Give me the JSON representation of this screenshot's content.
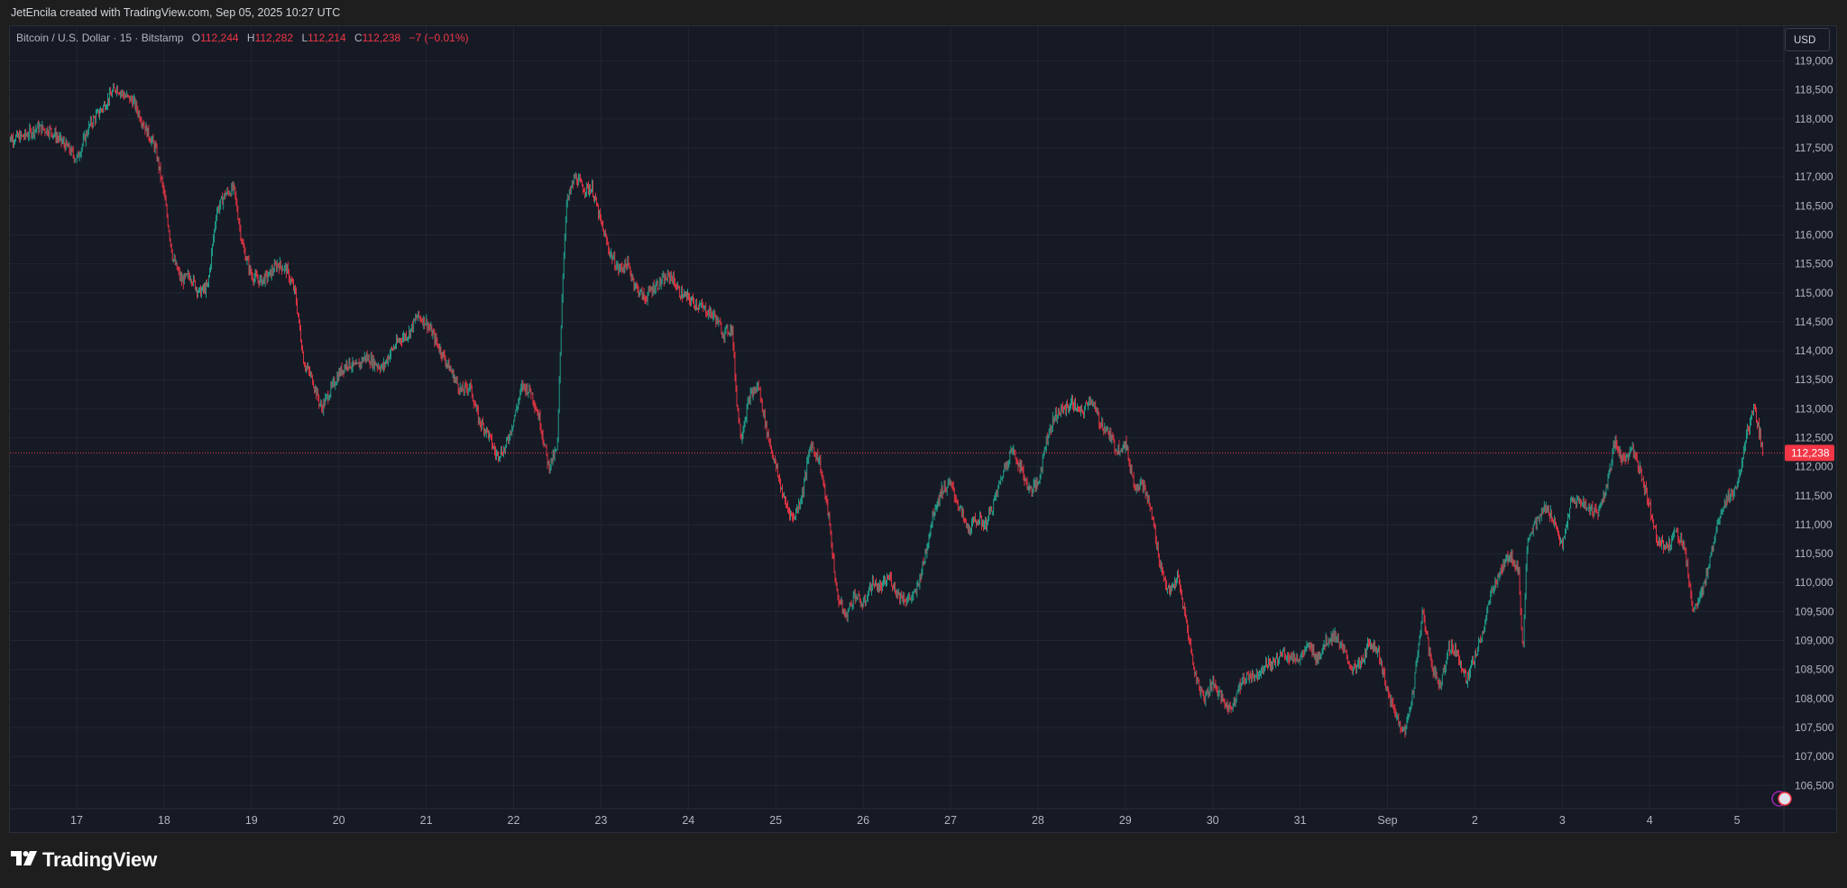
{
  "header": {
    "attribution": "JetEncila created with TradingView.com, Sep 05, 2025 10:27 UTC"
  },
  "legend": {
    "symbol": "Bitcoin / U.S. Dollar · 15 · Bitstamp",
    "open_label": "O",
    "open": "112,244",
    "high_label": "H",
    "high": "112,282",
    "low_label": "L",
    "low": "112,214",
    "close_label": "C",
    "close": "112,238",
    "change": "−7 (−0.01%)"
  },
  "currency_button": "USD",
  "branding": {
    "name": "TradingView"
  },
  "colors": {
    "background": "#161a25",
    "up": "#22ab94",
    "down": "#f23645",
    "grid": "#222633",
    "axis_text": "#b2b5be",
    "price_badge": "#f23645"
  },
  "chart_data": {
    "type": "candlestick",
    "title": "Bitcoin / U.S. Dollar · 15 · Bitstamp",
    "interval": "15",
    "ylim": [
      106100,
      119600
    ],
    "y_ticks": [
      "106,500",
      "107,000",
      "107,500",
      "108,000",
      "108,500",
      "109,000",
      "109,500",
      "110,000",
      "110,500",
      "111,000",
      "111,500",
      "112,000",
      "112,500",
      "113,000",
      "113,500",
      "114,000",
      "114,500",
      "115,000",
      "115,500",
      "116,000",
      "116,500",
      "117,000",
      "117,500",
      "118,000",
      "118,500",
      "119,000"
    ],
    "x_ticks": [
      "17",
      "18",
      "19",
      "20",
      "21",
      "22",
      "23",
      "24",
      "25",
      "26",
      "27",
      "28",
      "29",
      "30",
      "31",
      "Sep",
      "2",
      "3",
      "4",
      "5"
    ],
    "x_start": 16.2,
    "x_end": 36.5,
    "last_price": "112,238",
    "last_value": 112238,
    "grid": true,
    "price_path": [
      [
        16.2,
        117650
      ],
      [
        16.4,
        117700
      ],
      [
        16.55,
        117850
      ],
      [
        16.7,
        117800
      ],
      [
        16.9,
        117500
      ],
      [
        17.0,
        117300
      ],
      [
        17.15,
        117900
      ],
      [
        17.3,
        118200
      ],
      [
        17.45,
        118550
      ],
      [
        17.55,
        118400
      ],
      [
        17.65,
        118300
      ],
      [
        17.8,
        117800
      ],
      [
        17.9,
        117500
      ],
      [
        18.0,
        116700
      ],
      [
        18.1,
        115600
      ],
      [
        18.2,
        115200
      ],
      [
        18.3,
        115300
      ],
      [
        18.4,
        115000
      ],
      [
        18.5,
        115100
      ],
      [
        18.6,
        116400
      ],
      [
        18.7,
        116700
      ],
      [
        18.8,
        116800
      ],
      [
        18.9,
        115800
      ],
      [
        19.0,
        115300
      ],
      [
        19.1,
        115200
      ],
      [
        19.2,
        115300
      ],
      [
        19.3,
        115500
      ],
      [
        19.4,
        115400
      ],
      [
        19.5,
        115000
      ],
      [
        19.55,
        114400
      ],
      [
        19.6,
        113800
      ],
      [
        19.7,
        113500
      ],
      [
        19.8,
        113000
      ],
      [
        19.9,
        113300
      ],
      [
        20.0,
        113600
      ],
      [
        20.1,
        113800
      ],
      [
        20.2,
        113700
      ],
      [
        20.3,
        113900
      ],
      [
        20.4,
        113800
      ],
      [
        20.5,
        113700
      ],
      [
        20.6,
        114000
      ],
      [
        20.7,
        114200
      ],
      [
        20.8,
        114300
      ],
      [
        20.9,
        114600
      ],
      [
        21.0,
        114500
      ],
      [
        21.1,
        114200
      ],
      [
        21.2,
        113900
      ],
      [
        21.3,
        113600
      ],
      [
        21.4,
        113300
      ],
      [
        21.5,
        113400
      ],
      [
        21.6,
        112800
      ],
      [
        21.7,
        112600
      ],
      [
        21.8,
        112200
      ],
      [
        21.9,
        112300
      ],
      [
        22.0,
        112800
      ],
      [
        22.1,
        113400
      ],
      [
        22.2,
        113300
      ],
      [
        22.3,
        112800
      ],
      [
        22.4,
        112000
      ],
      [
        22.5,
        112300
      ],
      [
        22.55,
        114800
      ],
      [
        22.6,
        116500
      ],
      [
        22.7,
        117000
      ],
      [
        22.8,
        116800
      ],
      [
        22.9,
        116800
      ],
      [
        23.0,
        116200
      ],
      [
        23.1,
        115700
      ],
      [
        23.2,
        115400
      ],
      [
        23.3,
        115500
      ],
      [
        23.4,
        115100
      ],
      [
        23.5,
        114900
      ],
      [
        23.6,
        115100
      ],
      [
        23.7,
        115200
      ],
      [
        23.8,
        115300
      ],
      [
        23.9,
        115000
      ],
      [
        24.0,
        114900
      ],
      [
        24.1,
        114800
      ],
      [
        24.2,
        114700
      ],
      [
        24.3,
        114600
      ],
      [
        24.4,
        114300
      ],
      [
        24.5,
        114400
      ],
      [
        24.55,
        113200
      ],
      [
        24.6,
        112500
      ],
      [
        24.7,
        113200
      ],
      [
        24.8,
        113400
      ],
      [
        24.9,
        112600
      ],
      [
        25.0,
        112000
      ],
      [
        25.1,
        111400
      ],
      [
        25.2,
        111100
      ],
      [
        25.3,
        111500
      ],
      [
        25.4,
        112400
      ],
      [
        25.5,
        112100
      ],
      [
        25.6,
        111200
      ],
      [
        25.7,
        109800
      ],
      [
        25.8,
        109400
      ],
      [
        25.9,
        109800
      ],
      [
        26.0,
        109600
      ],
      [
        26.1,
        110000
      ],
      [
        26.2,
        109900
      ],
      [
        26.3,
        110100
      ],
      [
        26.4,
        109800
      ],
      [
        26.5,
        109700
      ],
      [
        26.6,
        109800
      ],
      [
        26.7,
        110400
      ],
      [
        26.8,
        111200
      ],
      [
        26.9,
        111600
      ],
      [
        27.0,
        111700
      ],
      [
        27.1,
        111300
      ],
      [
        27.2,
        110900
      ],
      [
        27.3,
        111100
      ],
      [
        27.4,
        111000
      ],
      [
        27.5,
        111400
      ],
      [
        27.6,
        111900
      ],
      [
        27.7,
        112300
      ],
      [
        27.8,
        112000
      ],
      [
        27.9,
        111600
      ],
      [
        28.0,
        111700
      ],
      [
        28.1,
        112500
      ],
      [
        28.2,
        112900
      ],
      [
        28.3,
        113000
      ],
      [
        28.4,
        113100
      ],
      [
        28.5,
        112900
      ],
      [
        28.6,
        113200
      ],
      [
        28.7,
        112800
      ],
      [
        28.8,
        112600
      ],
      [
        28.9,
        112300
      ],
      [
        29.0,
        112400
      ],
      [
        29.1,
        111700
      ],
      [
        29.2,
        111700
      ],
      [
        29.3,
        111200
      ],
      [
        29.4,
        110300
      ],
      [
        29.5,
        109800
      ],
      [
        29.6,
        110100
      ],
      [
        29.7,
        109300
      ],
      [
        29.8,
        108400
      ],
      [
        29.9,
        108000
      ],
      [
        30.0,
        108300
      ],
      [
        30.1,
        108000
      ],
      [
        30.2,
        107800
      ],
      [
        30.3,
        108200
      ],
      [
        30.4,
        108400
      ],
      [
        30.5,
        108400
      ],
      [
        30.6,
        108600
      ],
      [
        30.7,
        108600
      ],
      [
        30.8,
        108800
      ],
      [
        30.9,
        108700
      ],
      [
        31.0,
        108700
      ],
      [
        31.1,
        108900
      ],
      [
        31.2,
        108700
      ],
      [
        31.3,
        109000
      ],
      [
        31.4,
        109100
      ],
      [
        31.5,
        108800
      ],
      [
        31.6,
        108500
      ],
      [
        31.7,
        108600
      ],
      [
        31.8,
        109000
      ],
      [
        31.9,
        108800
      ],
      [
        32.0,
        108100
      ],
      [
        32.1,
        107700
      ],
      [
        32.2,
        107400
      ],
      [
        32.3,
        108200
      ],
      [
        32.4,
        109500
      ],
      [
        32.5,
        108600
      ],
      [
        32.6,
        108200
      ],
      [
        32.7,
        108900
      ],
      [
        32.8,
        108800
      ],
      [
        32.9,
        108300
      ],
      [
        33.0,
        108700
      ],
      [
        33.1,
        109200
      ],
      [
        33.2,
        109900
      ],
      [
        33.3,
        110200
      ],
      [
        33.4,
        110500
      ],
      [
        33.5,
        110200
      ],
      [
        33.55,
        108800
      ],
      [
        33.6,
        110800
      ],
      [
        33.7,
        111000
      ],
      [
        33.8,
        111300
      ],
      [
        33.9,
        111100
      ],
      [
        34.0,
        110600
      ],
      [
        34.1,
        111400
      ],
      [
        34.2,
        111400
      ],
      [
        34.3,
        111300
      ],
      [
        34.4,
        111200
      ],
      [
        34.5,
        111600
      ],
      [
        34.6,
        112400
      ],
      [
        34.7,
        112100
      ],
      [
        34.8,
        112300
      ],
      [
        34.9,
        111900
      ],
      [
        35.0,
        111300
      ],
      [
        35.1,
        110700
      ],
      [
        35.2,
        110600
      ],
      [
        35.3,
        110900
      ],
      [
        35.4,
        110600
      ],
      [
        35.5,
        109500
      ],
      [
        35.6,
        109800
      ],
      [
        35.7,
        110500
      ],
      [
        35.8,
        111200
      ],
      [
        35.9,
        111500
      ],
      [
        36.0,
        111600
      ],
      [
        36.1,
        112500
      ],
      [
        36.2,
        113000
      ],
      [
        36.3,
        112238
      ]
    ]
  }
}
